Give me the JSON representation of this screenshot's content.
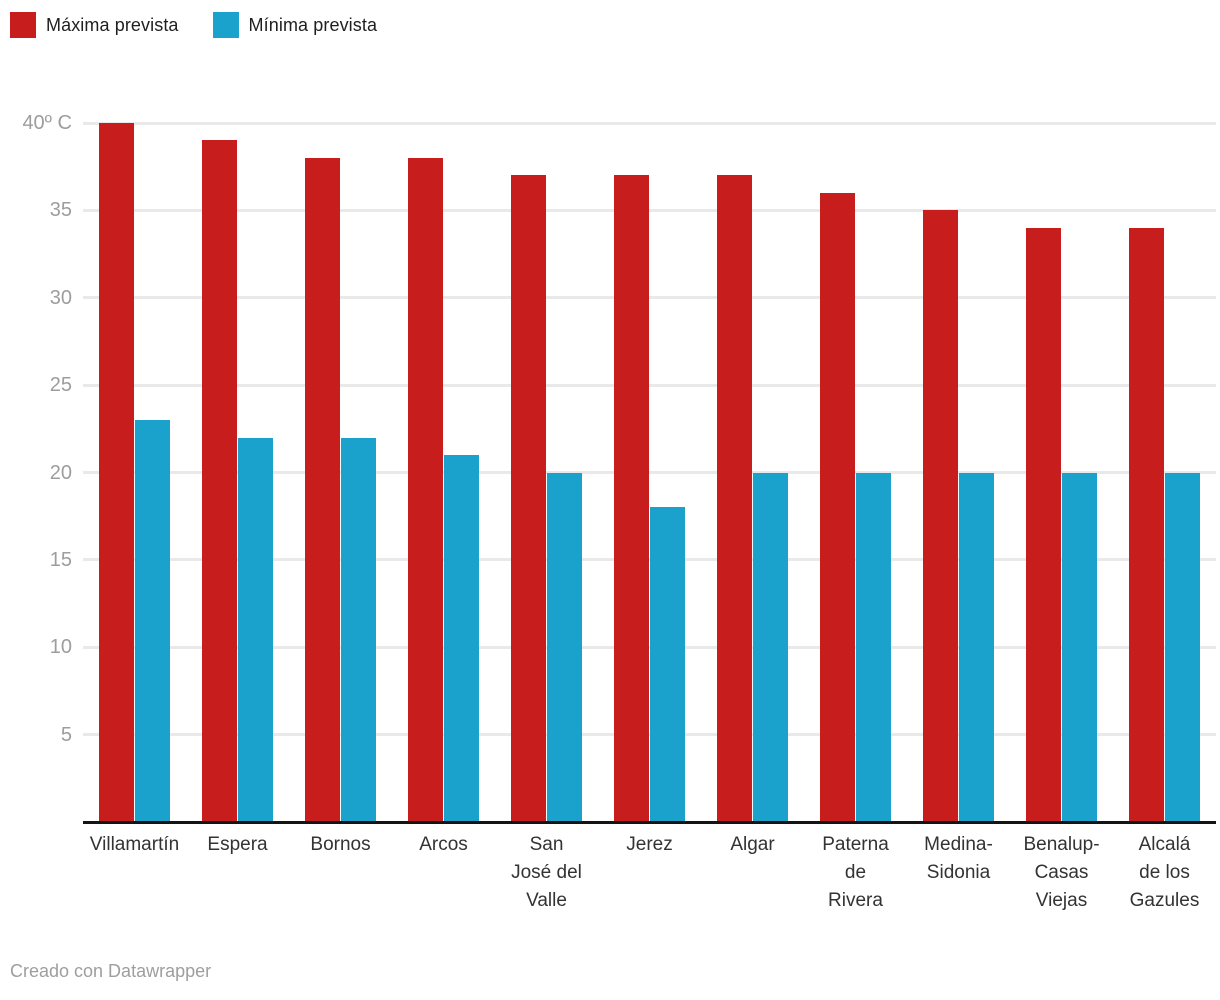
{
  "footer": {
    "text": "Creado con Datawrapper"
  },
  "chart_data": {
    "type": "bar",
    "title": "",
    "xlabel": "",
    "ylabel": "",
    "categories": [
      "Villamartín",
      "Espera",
      "Bornos",
      "Arcos",
      "San José del Valle",
      "Jerez",
      "Algar",
      "Paterna de Rivera",
      "Medina-Sidonia",
      "Benalup-Casas Viejas",
      "Alcalá de los Gazules"
    ],
    "category_lines": [
      [
        "Villamartín"
      ],
      [
        "Espera"
      ],
      [
        "Bornos"
      ],
      [
        "Arcos"
      ],
      [
        "San",
        "José del",
        "Valle"
      ],
      [
        "Jerez"
      ],
      [
        "Algar"
      ],
      [
        "Paterna",
        "de",
        "Rivera"
      ],
      [
        "Medina-",
        "Sidonia"
      ],
      [
        "Benalup-",
        "Casas",
        "Viejas"
      ],
      [
        "Alcalá",
        "de los",
        "Gazules"
      ]
    ],
    "series": [
      {
        "name": "Máxima prevista",
        "color": "#c71e1d",
        "values": [
          40,
          39,
          38,
          38,
          37,
          37,
          37,
          36,
          35,
          34,
          34
        ]
      },
      {
        "name": "Mínima prevista",
        "color": "#1ba2cc",
        "values": [
          23,
          22,
          22,
          21,
          20,
          18,
          20,
          20,
          20,
          20,
          20
        ]
      }
    ],
    "y_axis": {
      "min": 0,
      "max": 40,
      "ticks": [
        {
          "value": 40,
          "label": "40º C"
        },
        {
          "value": 35,
          "label": "35"
        },
        {
          "value": 30,
          "label": "30"
        },
        {
          "value": 25,
          "label": "25"
        },
        {
          "value": 20,
          "label": "20"
        },
        {
          "value": 15,
          "label": "15"
        },
        {
          "value": 10,
          "label": "10"
        },
        {
          "value": 5,
          "label": "5"
        }
      ]
    },
    "grid": "horizontal",
    "legend_position": "top-left",
    "colors": {
      "grid": "#e9e9e9",
      "axis": "#141414",
      "tick_text": "#9d9d9d",
      "category_text": "#333333"
    }
  }
}
